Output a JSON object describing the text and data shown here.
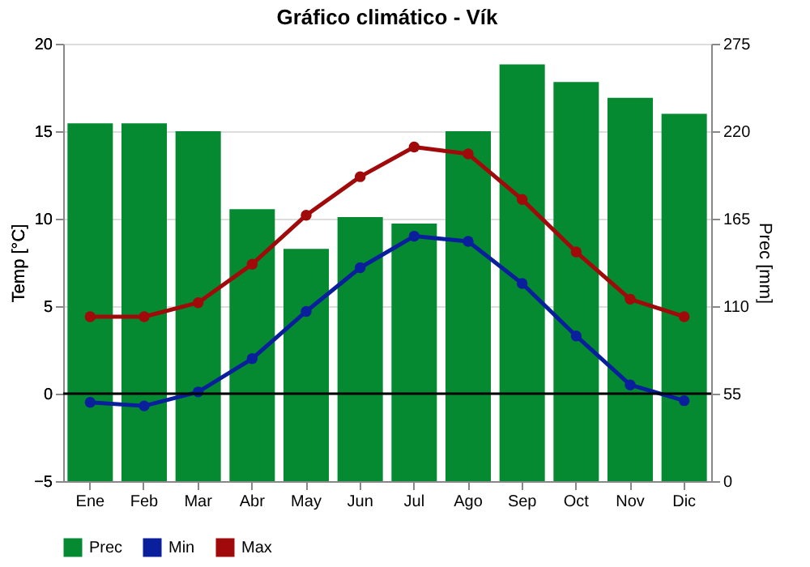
{
  "chart_data": {
    "type": "bar",
    "title": "Gráfico climático - Vík",
    "ylabel": "Temp [°C]",
    "y2label": "Prec [mm]",
    "categories": [
      "Ene",
      "Feb",
      "Mar",
      "Abr",
      "May",
      "Jun",
      "Jul",
      "Ago",
      "Sep",
      "Oct",
      "Nov",
      "Dic"
    ],
    "series": [
      {
        "name": "Prec",
        "axis": "y2",
        "color": "#058a32",
        "values": [
          225,
          225,
          220,
          171,
          146,
          166,
          162,
          220,
          262,
          251,
          241,
          231
        ]
      },
      {
        "name": "Min",
        "type": "line",
        "color": "#0a1f9c",
        "values": [
          -0.5,
          -0.7,
          0.1,
          2.0,
          4.7,
          7.2,
          9.0,
          8.7,
          6.3,
          3.3,
          0.5,
          -0.4
        ]
      },
      {
        "name": "Max",
        "type": "line",
        "color": "#a00a0a",
        "values": [
          4.4,
          4.4,
          5.2,
          7.4,
          10.2,
          12.4,
          14.1,
          13.7,
          11.1,
          8.1,
          5.4,
          4.4
        ]
      }
    ],
    "ylim": [
      -5,
      20
    ],
    "yticks": [
      -5,
      0,
      5,
      10,
      15,
      20
    ],
    "y2lim": [
      0,
      275
    ],
    "y2ticks": [
      0,
      55,
      110,
      165,
      220,
      275
    ],
    "ref_lines": [
      {
        "axis": "y",
        "value": 0,
        "color": "#000000"
      }
    ],
    "grid": "y",
    "legend": "bottom",
    "marker": "circle",
    "line_style": "solid"
  }
}
